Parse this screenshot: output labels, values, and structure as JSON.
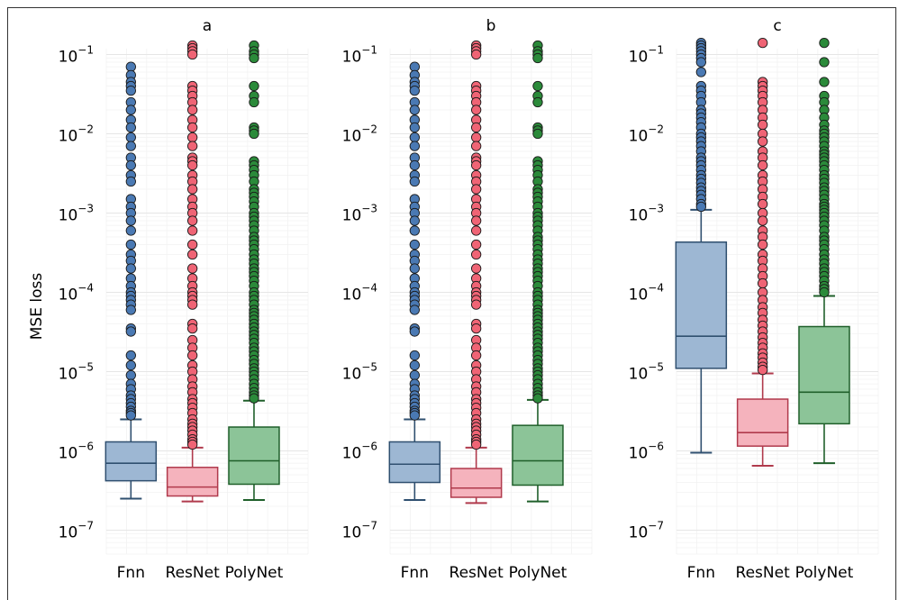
{
  "chart_data": {
    "type": "box",
    "ylabel": "MSE loss",
    "yscale": "log",
    "ylim": [
      5e-08,
      0.15
    ],
    "yticks": [
      1e-07,
      1e-06,
      1e-05,
      0.0001,
      0.001,
      0.01,
      0.1
    ],
    "ytick_labels": [
      {
        "base": "10",
        "exp": "−7"
      },
      {
        "base": "10",
        "exp": "−6"
      },
      {
        "base": "10",
        "exp": "−5"
      },
      {
        "base": "10",
        "exp": "−4"
      },
      {
        "base": "10",
        "exp": "−3"
      },
      {
        "base": "10",
        "exp": "−2"
      },
      {
        "base": "10",
        "exp": "−1"
      }
    ],
    "grid": true,
    "colors": {
      "Fnn": {
        "fill": "#9db7d3",
        "stroke": "#2f4f6f",
        "point": "#4a79b3"
      },
      "ResNet": {
        "fill": "#f5b3bd",
        "stroke": "#b03a4c",
        "point": "#ef6475"
      },
      "PolyNet": {
        "fill": "#8cc498",
        "stroke": "#1f5f2a",
        "point": "#2b8a3a"
      }
    },
    "panels": [
      {
        "title": "a",
        "categories": [
          "Fnn",
          "ResNet",
          "PolyNet"
        ],
        "boxes": [
          {
            "name": "Fnn",
            "whislo": 2.5e-07,
            "q1": 4.2e-07,
            "med": 7e-07,
            "q3": 1.3e-06,
            "whishi": 2.5e-06,
            "fliers": [
              0.07,
              0.055,
              0.045,
              0.04,
              0.035,
              0.025,
              0.02,
              0.015,
              0.012,
              0.009,
              0.007,
              0.005,
              0.004,
              0.003,
              0.0025,
              0.0015,
              0.0012,
              0.001,
              0.0008,
              0.0006,
              0.0004,
              0.0003,
              0.00025,
              0.0002,
              0.00015,
              0.00012,
              0.0001,
              9e-05,
              8e-05,
              7e-05,
              6e-05,
              3.5e-05,
              3.2e-05,
              1.6e-05,
              1.2e-05,
              9e-06,
              7e-06,
              6e-06,
              5e-06,
              4.5e-06,
              4e-06,
              3.6e-06,
              3.2e-06,
              3e-06,
              2.8e-06
            ]
          },
          {
            "name": "ResNet",
            "whislo": 2.3e-07,
            "q1": 2.7e-07,
            "med": 3.5e-07,
            "q3": 6.2e-07,
            "whishi": 1.1e-06,
            "fliers": [
              0.13,
              0.12,
              0.11,
              0.1,
              0.04,
              0.035,
              0.03,
              0.025,
              0.02,
              0.015,
              0.012,
              0.009,
              0.007,
              0.005,
              0.0045,
              0.004,
              0.003,
              0.0025,
              0.002,
              0.0015,
              0.0012,
              0.001,
              0.0008,
              0.0006,
              0.0004,
              0.0003,
              0.0002,
              0.00015,
              0.00012,
              0.0001,
              9e-05,
              8e-05,
              7e-05,
              4e-05,
              3.5e-05,
              2.5e-05,
              2e-05,
              1.6e-05,
              1.2e-05,
              1e-05,
              8e-06,
              6.5e-06,
              5.5e-06,
              4.5e-06,
              4e-06,
              3.5e-06,
              3e-06,
              2.5e-06,
              2.2e-06,
              2e-06,
              1.8e-06,
              1.6e-06,
              1.4e-06,
              1.3e-06,
              1.2e-06
            ]
          },
          {
            "name": "PolyNet",
            "whislo": 2.4e-07,
            "q1": 3.8e-07,
            "med": 7.5e-07,
            "q3": 2e-06,
            "whishi": 4.3e-06,
            "fliers": [
              0.13,
              0.11,
              0.1,
              0.09,
              0.04,
              0.03,
              0.025,
              0.012,
              0.011,
              0.01,
              0.0045,
              0.004,
              0.0035,
              0.003,
              0.0025,
              0.002,
              0.0018,
              0.0016,
              0.0014,
              0.0012,
              0.001,
              0.0009,
              0.0008,
              0.0007,
              0.0006,
              0.0005,
              0.00045,
              0.0004,
              0.00035,
              0.0003,
              0.00026,
              0.00023,
              0.0002,
              0.00018,
              0.00016,
              0.00014,
              0.00012,
              0.0001,
              9e-05,
              8e-05,
              7e-05,
              6e-05,
              5.5e-05,
              5e-05,
              4.5e-05,
              4e-05,
              3.6e-05,
              3.2e-05,
              2.9e-05,
              2.6e-05,
              2.3e-05,
              2e-05,
              1.8e-05,
              1.6e-05,
              1.4e-05,
              1.25e-05,
              1.1e-05,
              1e-05,
              9e-06,
              8e-06,
              7e-06,
              6.2e-06,
              5.5e-06,
              5e-06,
              4.6e-06
            ]
          }
        ]
      },
      {
        "title": "b",
        "categories": [
          "Fnn",
          "ResNet",
          "PolyNet"
        ],
        "boxes": [
          {
            "name": "Fnn",
            "whislo": 2.4e-07,
            "q1": 4e-07,
            "med": 6.8e-07,
            "q3": 1.3e-06,
            "whishi": 2.5e-06,
            "fliers": [
              0.07,
              0.055,
              0.045,
              0.04,
              0.035,
              0.025,
              0.02,
              0.015,
              0.012,
              0.009,
              0.007,
              0.005,
              0.004,
              0.003,
              0.0025,
              0.0015,
              0.0012,
              0.001,
              0.0008,
              0.0006,
              0.0004,
              0.0003,
              0.00025,
              0.0002,
              0.00015,
              0.00012,
              0.0001,
              9e-05,
              8e-05,
              7e-05,
              6e-05,
              3.5e-05,
              3.2e-05,
              1.6e-05,
              1.2e-05,
              9e-06,
              7e-06,
              6e-06,
              5e-06,
              4.5e-06,
              4e-06,
              3.6e-06,
              3.2e-06,
              3e-06,
              2.8e-06
            ]
          },
          {
            "name": "ResNet",
            "whislo": 2.2e-07,
            "q1": 2.6e-07,
            "med": 3.4e-07,
            "q3": 6e-07,
            "whishi": 1.1e-06,
            "fliers": [
              0.13,
              0.12,
              0.11,
              0.1,
              0.04,
              0.035,
              0.03,
              0.025,
              0.02,
              0.015,
              0.012,
              0.009,
              0.007,
              0.005,
              0.0045,
              0.004,
              0.003,
              0.0025,
              0.002,
              0.0015,
              0.0012,
              0.001,
              0.0008,
              0.0006,
              0.0004,
              0.0003,
              0.0002,
              0.00015,
              0.00012,
              0.0001,
              9e-05,
              8e-05,
              7e-05,
              4e-05,
              3.5e-05,
              2.5e-05,
              2e-05,
              1.6e-05,
              1.2e-05,
              1e-05,
              8e-06,
              6.5e-06,
              5.5e-06,
              4.5e-06,
              4e-06,
              3.5e-06,
              3e-06,
              2.5e-06,
              2.2e-06,
              2e-06,
              1.8e-06,
              1.6e-06,
              1.4e-06,
              1.3e-06,
              1.2e-06
            ]
          },
          {
            "name": "PolyNet",
            "whislo": 2.3e-07,
            "q1": 3.7e-07,
            "med": 7.5e-07,
            "q3": 2.1e-06,
            "whishi": 4.4e-06,
            "fliers": [
              0.13,
              0.11,
              0.1,
              0.09,
              0.04,
              0.03,
              0.025,
              0.012,
              0.011,
              0.01,
              0.0045,
              0.004,
              0.0035,
              0.003,
              0.0025,
              0.002,
              0.0018,
              0.0016,
              0.0014,
              0.0012,
              0.001,
              0.0009,
              0.0008,
              0.0007,
              0.0006,
              0.0005,
              0.00045,
              0.0004,
              0.00035,
              0.0003,
              0.00026,
              0.00023,
              0.0002,
              0.00018,
              0.00016,
              0.00014,
              0.00012,
              0.0001,
              9e-05,
              8e-05,
              7e-05,
              6e-05,
              5.5e-05,
              5e-05,
              4.5e-05,
              4e-05,
              3.6e-05,
              3.2e-05,
              2.9e-05,
              2.6e-05,
              2.3e-05,
              2e-05,
              1.8e-05,
              1.6e-05,
              1.4e-05,
              1.25e-05,
              1.1e-05,
              1e-05,
              9e-06,
              8e-06,
              7e-06,
              6.2e-06,
              5.5e-06,
              5e-06,
              4.6e-06
            ]
          }
        ]
      },
      {
        "title": "c",
        "categories": [
          "Fnn",
          "ResNet",
          "PolyNet"
        ],
        "boxes": [
          {
            "name": "Fnn",
            "whislo": 9.5e-07,
            "q1": 1.1e-05,
            "med": 2.8e-05,
            "q3": 0.00043,
            "whishi": 0.0011,
            "fliers": [
              0.14,
              0.13,
              0.12,
              0.11,
              0.1,
              0.09,
              0.08,
              0.06,
              0.04,
              0.035,
              0.03,
              0.025,
              0.02,
              0.018,
              0.016,
              0.014,
              0.012,
              0.01,
              0.009,
              0.008,
              0.007,
              0.006,
              0.005,
              0.0045,
              0.004,
              0.0035,
              0.003,
              0.0027,
              0.0024,
              0.0021,
              0.0019,
              0.0017,
              0.0015,
              0.0013,
              0.0012
            ]
          },
          {
            "name": "ResNet",
            "whislo": 6.5e-07,
            "q1": 1.15e-06,
            "med": 1.7e-06,
            "q3": 4.5e-06,
            "whishi": 9.5e-06,
            "fliers": [
              0.14,
              0.045,
              0.04,
              0.035,
              0.03,
              0.025,
              0.02,
              0.016,
              0.013,
              0.01,
              0.008,
              0.006,
              0.005,
              0.004,
              0.003,
              0.0025,
              0.002,
              0.0016,
              0.0013,
              0.001,
              0.0008,
              0.0006,
              0.0005,
              0.0004,
              0.0003,
              0.00025,
              0.0002,
              0.00016,
              0.00013,
              0.0001,
              8e-05,
              6.5e-05,
              5.5e-05,
              4.5e-05,
              3.8e-05,
              3.2e-05,
              2.7e-05,
              2.3e-05,
              2e-05,
              1.7e-05,
              1.5e-05,
              1.3e-05,
              1.15e-05,
              1.05e-05
            ]
          },
          {
            "name": "PolyNet",
            "whislo": 7e-07,
            "q1": 2.2e-06,
            "med": 5.5e-06,
            "q3": 3.7e-05,
            "whishi": 9e-05,
            "fliers": [
              0.14,
              0.08,
              0.045,
              0.03,
              0.025,
              0.02,
              0.016,
              0.013,
              0.011,
              0.01,
              0.009,
              0.008,
              0.007,
              0.006,
              0.0055,
              0.005,
              0.0045,
              0.004,
              0.0035,
              0.003,
              0.0027,
              0.0024,
              0.0021,
              0.0019,
              0.0017,
              0.0015,
              0.0013,
              0.0012,
              0.0011,
              0.001,
              0.0009,
              0.0008,
              0.0007,
              0.0006,
              0.0005,
              0.00045,
              0.0004,
              0.00035,
              0.0003,
              0.00026,
              0.00023,
              0.0002,
              0.00018,
              0.00016,
              0.00014,
              0.00012,
              0.00011,
              0.0001
            ]
          }
        ]
      }
    ]
  }
}
